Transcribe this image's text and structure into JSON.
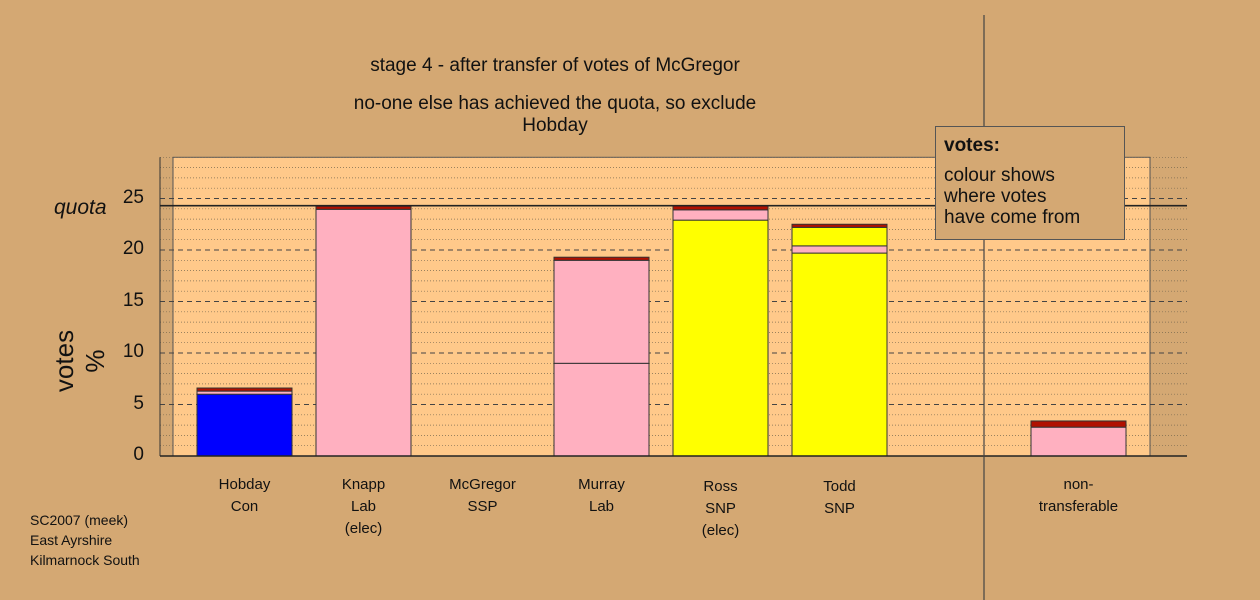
{
  "chart_data": {
    "type": "bar",
    "stacked": true,
    "titles": [
      "stage 4 - after transfer of votes of McGregor",
      "no-one else has achieved the quota, so exclude Hobday"
    ],
    "ylabel": "votes %",
    "ylim": [
      0,
      29
    ],
    "yticks": [
      0,
      5,
      10,
      15,
      20,
      25
    ],
    "quota": 24.3,
    "quota_label": "quota",
    "candidates": [
      {
        "name": "Hobday",
        "party": "Con",
        "note": "",
        "segments": [
          {
            "value": 6.0,
            "color": "#0000FF"
          },
          {
            "value": 0.3,
            "color": "#FFB0C0"
          },
          {
            "value": 0.3,
            "color": "#B01000"
          }
        ]
      },
      {
        "name": "Knapp",
        "party": "Lab",
        "note": "(elec)",
        "segments": [
          {
            "value": 23.95,
            "color": "#FFB0C0"
          },
          {
            "value": 0.3,
            "color": "#B01000"
          }
        ]
      },
      {
        "name": "McGregor",
        "party": "SSP",
        "note": "",
        "segments": []
      },
      {
        "name": "Murray",
        "party": "Lab",
        "note": "",
        "segments": [
          {
            "value": 9.0,
            "color": "#FFB0C0"
          },
          {
            "value": 10.0,
            "color": "#FFB0C0"
          },
          {
            "value": 0.3,
            "color": "#B01000"
          }
        ]
      },
      {
        "name": "Ross",
        "party": "SNP",
        "note": "(elec)",
        "segments": [
          {
            "value": 22.9,
            "color": "#FFFF00"
          },
          {
            "value": 1.0,
            "color": "#FFB0C0"
          },
          {
            "value": 0.4,
            "color": "#B01000"
          }
        ]
      },
      {
        "name": "Todd",
        "party": "SNP",
        "note": "",
        "segments": [
          {
            "value": 19.7,
            "color": "#FFFF00"
          },
          {
            "value": 0.7,
            "color": "#FFB0C0"
          },
          {
            "value": 1.8,
            "color": "#FFFF00"
          },
          {
            "value": 0.3,
            "color": "#B01000"
          }
        ]
      }
    ],
    "nontransferable": {
      "label_line1": "non-",
      "label_line2": "transferable",
      "segments": [
        {
          "value": 2.8,
          "color": "#FFB0C0"
        },
        {
          "value": 0.6,
          "color": "#B01000"
        }
      ]
    }
  },
  "legend": {
    "title": "votes:",
    "lines": [
      "colour shows",
      "where votes",
      "have come from"
    ]
  },
  "footer": [
    "SC2007 (meek)",
    "East Ayrshire",
    "Kilmarnock South"
  ]
}
